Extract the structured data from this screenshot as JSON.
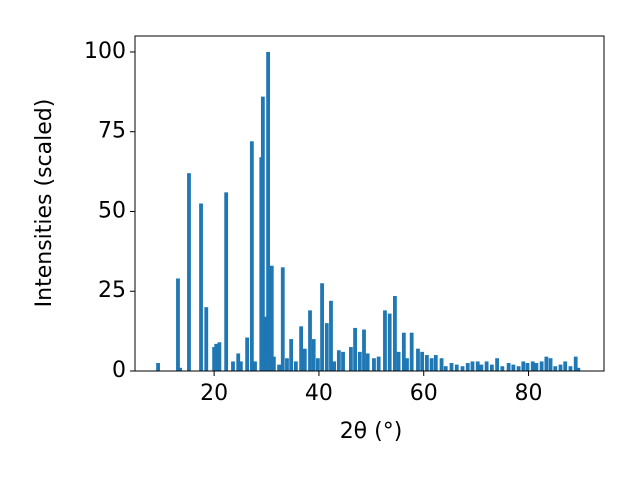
{
  "chart_data": {
    "type": "bar",
    "xlabel": "2θ (°)",
    "ylabel": "Intensities (scaled)",
    "color": "#1f77b4",
    "x": [
      9.3,
      13.1,
      13.5,
      15.2,
      17.5,
      18.5,
      20,
      20.4,
      21,
      22.3,
      23.6,
      24.6,
      25.1,
      26.3,
      27.2,
      27.8,
      29,
      29.3,
      29.9,
      30.3,
      31,
      31.4,
      32.4,
      33.1,
      33.9,
      34.7,
      35.6,
      36.6,
      37.3,
      38.3,
      39,
      39.8,
      40.6,
      41.5,
      42.3,
      42.9,
      43.8,
      44.6,
      46.1,
      46.9,
      47.8,
      48.6,
      49.3,
      50.5,
      51.4,
      52.6,
      53.5,
      54.5,
      55.2,
      56.2,
      56.8,
      57.7,
      58.9,
      59.7,
      60.6,
      61.5,
      62.3,
      63.4,
      64.2,
      65.3,
      66.3,
      67.4,
      68.4,
      69.3,
      70.3,
      71,
      72,
      73,
      74,
      75,
      76.2,
      77.1,
      78.1,
      79,
      79.8,
      80.8,
      81.5,
      82.5,
      83.4,
      84.2,
      85.1,
      86.1,
      87,
      88,
      89,
      89.5
    ],
    "values": [
      2.5,
      29,
      1,
      62,
      52.5,
      20,
      7.5,
      8.5,
      9,
      56,
      3,
      5.5,
      3,
      10.5,
      72,
      3,
      67,
      86,
      17,
      100,
      33,
      4.5,
      2,
      32.5,
      4,
      10,
      3,
      14,
      7,
      19,
      10,
      4,
      27.5,
      15,
      22,
      3,
      6.5,
      6,
      7.5,
      13.5,
      6,
      13,
      5.5,
      4,
      4.5,
      19,
      18,
      23.5,
      6,
      12,
      4,
      12,
      7,
      6,
      5,
      4,
      5,
      4,
      1.5,
      2.5,
      2,
      1.5,
      2.5,
      3,
      3,
      2,
      3,
      2,
      4,
      1.5,
      2.5,
      2,
      1.5,
      3,
      2.5,
      3,
      2.5,
      3,
      4.5,
      4,
      1.5,
      2,
      3,
      1.5,
      4.5,
      1
    ],
    "xlim": [
      4.9,
      94.4
    ],
    "ylim": [
      0,
      105
    ],
    "xticks": [
      20,
      40,
      60,
      80
    ],
    "yticks": [
      0,
      25,
      50,
      75,
      100
    ]
  }
}
